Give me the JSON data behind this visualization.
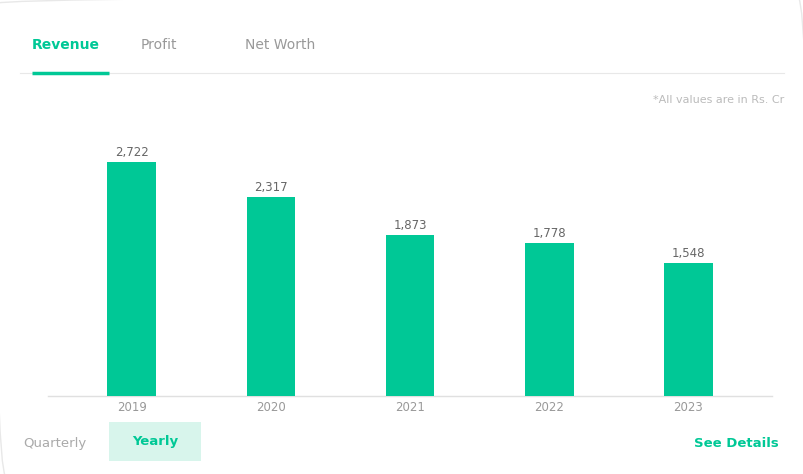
{
  "categories": [
    "2019",
    "2020",
    "2021",
    "2022",
    "2023"
  ],
  "values": [
    2722,
    2317,
    1873,
    1778,
    1548
  ],
  "bar_color": "#00C896",
  "background_color": "#ffffff",
  "annotation_color": "#666666",
  "annotation_fontsize": 8.5,
  "xlabel_fontsize": 8.5,
  "xlabel_color": "#999999",
  "tab_active": "Revenue",
  "tab_active_color": "#00C896",
  "tab_inactive_color": "#999999",
  "tabs": [
    "Revenue",
    "Profit",
    "Net Worth"
  ],
  "tab_fontsize": 10,
  "note_text": "*All values are in Rs. Cr",
  "note_color": "#bbbbbb",
  "note_fontsize": 8,
  "bottom_left_label1": "Quarterly",
  "bottom_left_label2": "Yearly",
  "bottom_right_label": "See Details",
  "bottom_label_color": "#aaaaaa",
  "bottom_right_color": "#00C896",
  "yearly_bg_color": "#d8f5ec",
  "yearly_text_color": "#00C896",
  "bar_width": 0.35,
  "ylim": [
    0,
    3200
  ]
}
